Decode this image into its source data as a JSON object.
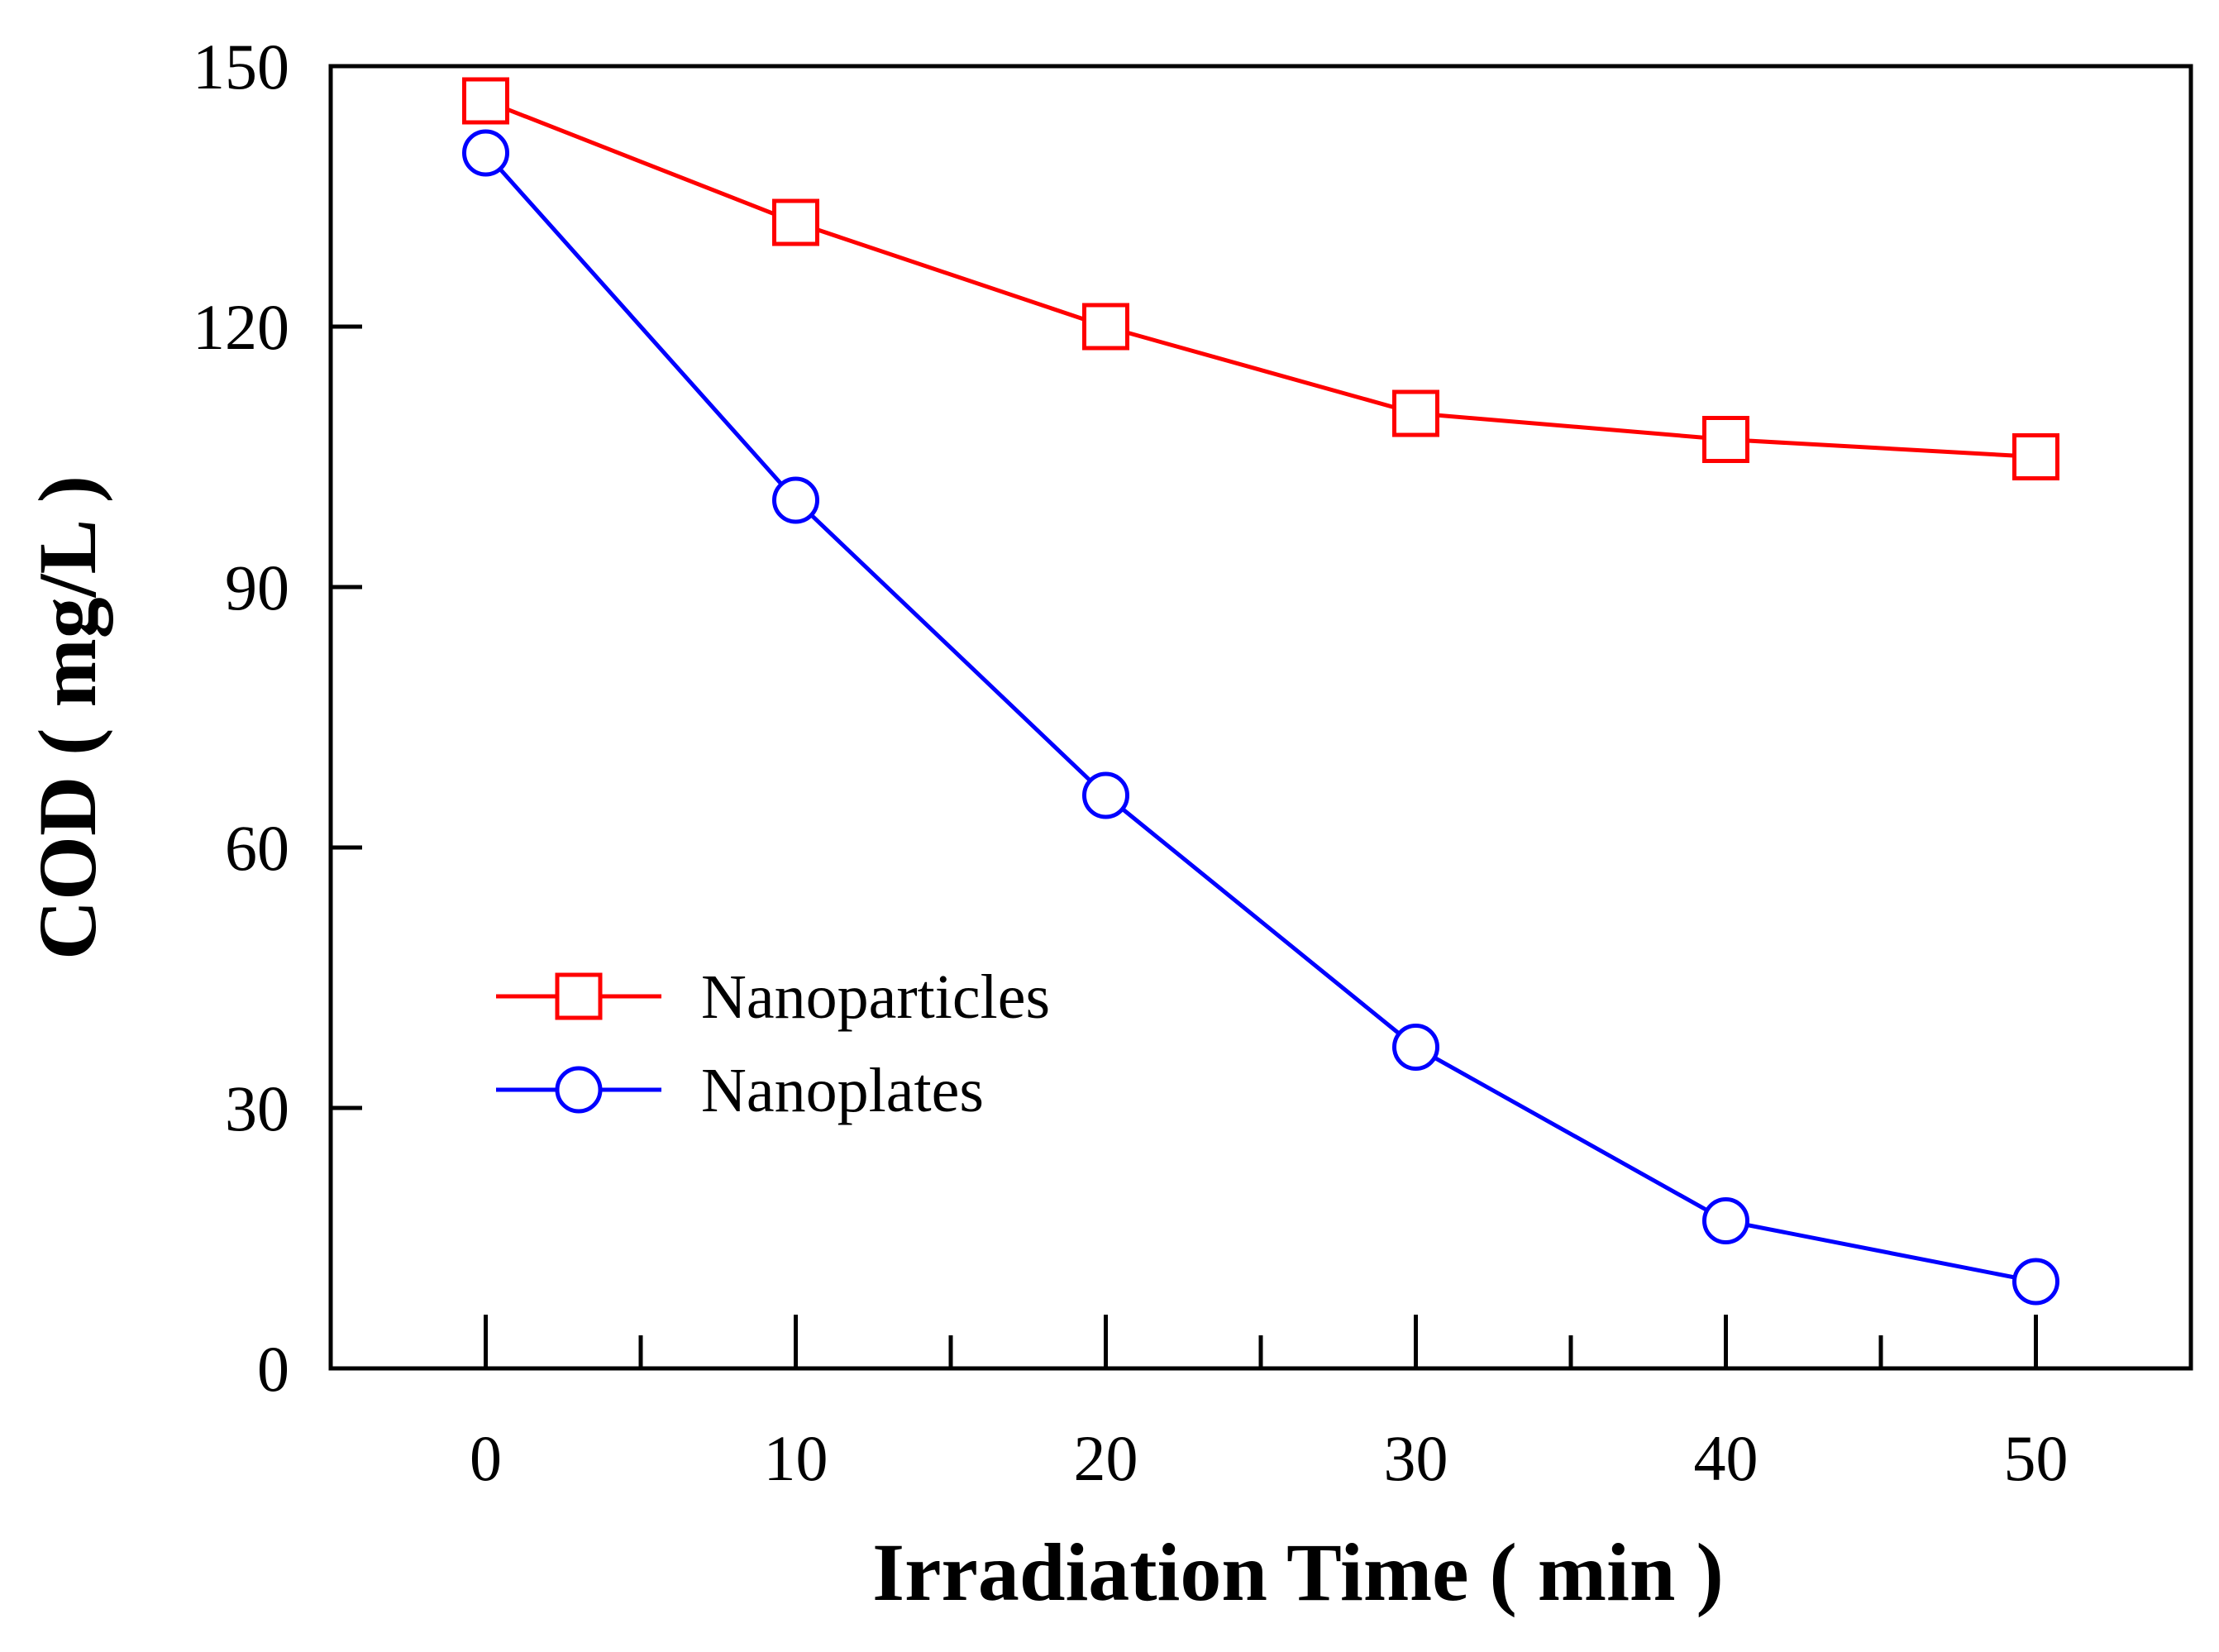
{
  "chart_data": {
    "type": "line",
    "title": "",
    "xlabel": "Irradiation Time ( min )",
    "ylabel": "COD ( mg/L )",
    "x": [
      0,
      10,
      20,
      30,
      40,
      50
    ],
    "xticks": [
      "0",
      "10",
      "20",
      "30",
      "40",
      "50"
    ],
    "yticks": [
      "0",
      "30",
      "60",
      "90",
      "120",
      "150"
    ],
    "xlim": [
      -5,
      55
    ],
    "ylim": [
      0,
      150
    ],
    "grid": false,
    "legend_position": "center-left",
    "series": [
      {
        "name": "Nanoparticles",
        "marker": "square",
        "color": "#ff0000",
        "values": [
          146,
          132,
          120,
          110,
          107,
          105
        ]
      },
      {
        "name": "Nanoplates",
        "marker": "circle",
        "color": "#0000ff",
        "values": [
          140,
          100,
          66,
          37,
          17,
          10
        ]
      }
    ]
  }
}
